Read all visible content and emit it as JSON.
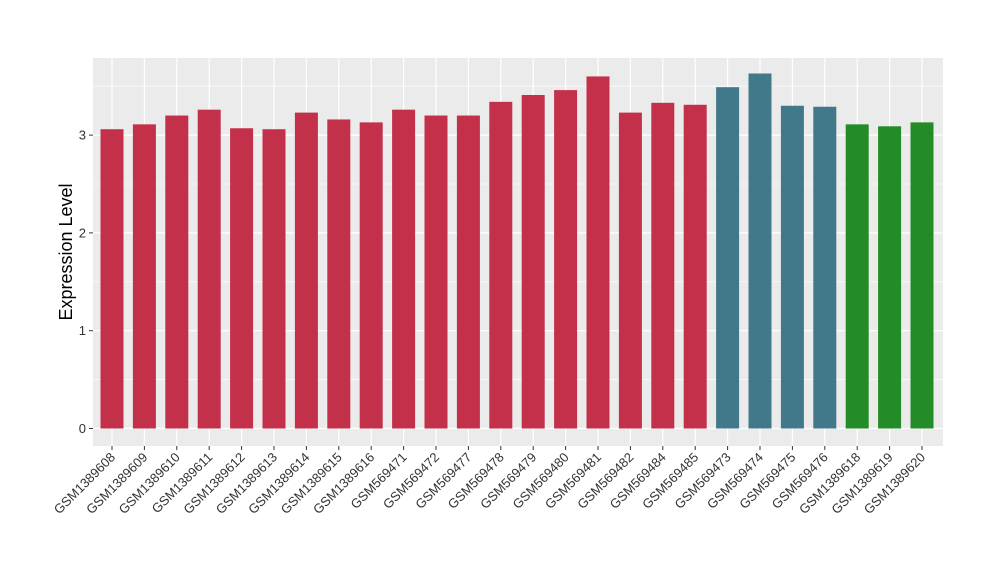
{
  "chart_data": {
    "type": "bar",
    "xlabel": "",
    "ylabel": "Expression Level",
    "ylim": [
      0,
      3.8
    ],
    "y_ticks": [
      0,
      1,
      2,
      3
    ],
    "grid": true,
    "colors": {
      "panel_background": "#ebebeb",
      "grid_major": "#ffffff",
      "group_red": "#c3304a",
      "group_teal": "#41788a",
      "group_green": "#238b27"
    },
    "categories": [
      "GSM1389608",
      "GSM1389609",
      "GSM1389610",
      "GSM1389611",
      "GSM1389612",
      "GSM1389613",
      "GSM1389614",
      "GSM1389615",
      "GSM1389616",
      "GSM569471",
      "GSM569472",
      "GSM569477",
      "GSM569478",
      "GSM569479",
      "GSM569480",
      "GSM569481",
      "GSM569482",
      "GSM569484",
      "GSM569485",
      "GSM569473",
      "GSM569474",
      "GSM569475",
      "GSM569476",
      "GSM1389618",
      "GSM1389619",
      "GSM1389620"
    ],
    "values": [
      3.06,
      3.11,
      3.2,
      3.26,
      3.07,
      3.06,
      3.23,
      3.16,
      3.13,
      3.26,
      3.2,
      3.2,
      3.34,
      3.41,
      3.46,
      3.6,
      3.23,
      3.33,
      3.31,
      3.49,
      3.63,
      3.3,
      3.29,
      3.11,
      3.09,
      3.13
    ],
    "bar_groups": [
      "red",
      "red",
      "red",
      "red",
      "red",
      "red",
      "red",
      "red",
      "red",
      "red",
      "red",
      "red",
      "red",
      "red",
      "red",
      "red",
      "red",
      "red",
      "red",
      "teal",
      "teal",
      "teal",
      "teal",
      "green",
      "green",
      "green"
    ]
  }
}
